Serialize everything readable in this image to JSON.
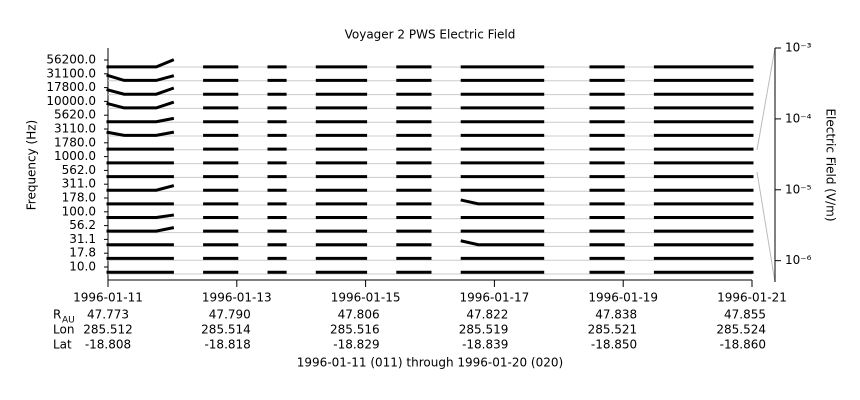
{
  "chart_data": {
    "type": "stacked-line",
    "title": "Voyager 2 PWS Electric Field",
    "y_label": "Frequency (Hz)",
    "y2_label": "Electric Field (V/m)",
    "x_label": "1996-01-11 (011) through 1996-01-20 (020)",
    "categories": [
      "56200.0",
      "31100.0",
      "17800.0",
      "10000.0",
      "5620.0",
      "3110.0",
      "1780.0",
      "1000.0",
      "562.0",
      "311.0",
      "178.0",
      "100.0",
      "56.2",
      "31.1",
      "17.8",
      "10.0"
    ],
    "xlim": [
      "1996-01-11",
      "1996-01-21"
    ],
    "xticks": [
      "1996-01-11",
      "1996-01-13",
      "1996-01-15",
      "1996-01-17",
      "1996-01-19",
      "1996-01-21"
    ],
    "y2lim": [
      5e-07,
      0.001
    ],
    "y2log": true,
    "y2ticks": [
      {
        "value": 0.001,
        "label": "10⁻³"
      },
      {
        "value": 0.0001,
        "label": "10⁻⁴"
      },
      {
        "value": 1e-05,
        "label": "10⁻⁵"
      },
      {
        "value": 1e-06,
        "label": "10⁻⁶"
      }
    ],
    "ephemeris": [
      {
        "label": "R",
        "sub": "AU",
        "values": [
          "47.773",
          "47.790",
          "47.806",
          "47.822",
          "47.838",
          "47.855"
        ]
      },
      {
        "label": "Lon",
        "values": [
          "285.512",
          "285.514",
          "285.516",
          "285.519",
          "285.521",
          "285.524"
        ]
      },
      {
        "label": "Lat",
        "values": [
          "-18.808",
          "-18.818",
          "-18.829",
          "-18.839",
          "-18.850",
          "-18.860"
        ]
      }
    ],
    "x": [
      "1996-01-11T00:00",
      "1996-01-11T06:00",
      "1996-01-11T12:00",
      "1996-01-11T18:00",
      "1996-01-12T00:00",
      "1996-01-12T06:00",
      "1996-01-12T12:00",
      "1996-01-12T18:00",
      "1996-01-13T00:00",
      "1996-01-13T06:00",
      "1996-01-13T12:00",
      "1996-01-13T18:00",
      "1996-01-14T00:00",
      "1996-01-14T06:00",
      "1996-01-14T12:00",
      "1996-01-14T18:00",
      "1996-01-15T00:00",
      "1996-01-15T06:00",
      "1996-01-15T12:00",
      "1996-01-15T18:00",
      "1996-01-16T00:00",
      "1996-01-16T06:00",
      "1996-01-16T12:00",
      "1996-01-16T18:00",
      "1996-01-17T00:00",
      "1996-01-17T06:00",
      "1996-01-17T12:00",
      "1996-01-17T18:00",
      "1996-01-18T00:00",
      "1996-01-18T06:00",
      "1996-01-18T12:00",
      "1996-01-18T18:00",
      "1996-01-19T00:00",
      "1996-01-19T06:00",
      "1996-01-19T12:00",
      "1996-01-19T18:00",
      "1996-01-20T00:00",
      "1996-01-20T06:00",
      "1996-01-20T12:00",
      "1996-01-20T18:00",
      "1996-01-21T00:00"
    ],
    "series": [
      {
        "color": "#000000",
        "values": [
          1e-06,
          1e-06,
          1e-06,
          1e-06,
          8e-05,
          null,
          1e-06,
          1e-06,
          1e-06,
          null,
          1e-06,
          1e-06,
          null,
          1e-06,
          1e-06,
          1e-06,
          1e-06,
          null,
          1e-06,
          1e-06,
          1e-06,
          null,
          1e-06,
          1e-06,
          1e-06,
          1e-06,
          1e-06,
          1e-06,
          null,
          null,
          1e-06,
          1e-06,
          1e-06,
          null,
          1e-06,
          1e-06,
          1e-06,
          1e-06,
          1e-06,
          1e-06,
          1e-06
        ]
      },
      {
        "color": "#000000",
        "values": [
          3e-05,
          1.2e-06,
          1.2e-06,
          1.2e-06,
          2e-05,
          null,
          1.2e-06,
          1.2e-06,
          1.2e-06,
          null,
          1.2e-06,
          1.2e-06,
          null,
          1.2e-06,
          1.2e-06,
          1.2e-06,
          1.2e-06,
          null,
          1.2e-06,
          1.2e-06,
          1.2e-06,
          null,
          1.2e-06,
          1.2e-06,
          1.2e-06,
          1.2e-06,
          1.2e-06,
          1.2e-06,
          null,
          null,
          1.2e-06,
          1.2e-06,
          1.2e-06,
          null,
          1.2e-06,
          1.2e-06,
          1.2e-06,
          1.2e-06,
          1.2e-06,
          1.2e-06,
          1.2e-06
        ]
      },
      {
        "color": "#000000",
        "values": [
          2e-05,
          1.2e-06,
          1.2e-06,
          1.2e-06,
          5e-05,
          null,
          1.2e-06,
          1.2e-06,
          1.2e-06,
          null,
          1.2e-06,
          1.2e-06,
          null,
          1.2e-06,
          1.2e-06,
          1.2e-06,
          1.2e-06,
          null,
          1.2e-06,
          1.2e-06,
          1.2e-06,
          null,
          1.2e-06,
          1.2e-06,
          1.2e-06,
          1.2e-06,
          1.2e-06,
          1.2e-06,
          null,
          null,
          1.2e-06,
          1.2e-06,
          1.2e-06,
          null,
          1.2e-06,
          1.2e-06,
          1.2e-06,
          1.2e-06,
          1.2e-06,
          1.2e-06,
          1.2e-06
        ]
      },
      {
        "color": "#000000",
        "values": [
          2e-05,
          1.3e-06,
          1.3e-06,
          1.3e-06,
          4e-05,
          null,
          1.3e-06,
          1.3e-06,
          1.3e-06,
          null,
          1.3e-06,
          1.3e-06,
          null,
          1.3e-06,
          1.3e-06,
          1.3e-06,
          1.3e-06,
          null,
          1.3e-06,
          1.3e-06,
          1.3e-06,
          null,
          1.3e-06,
          1.3e-06,
          1.3e-06,
          1.3e-06,
          1.3e-06,
          1.3e-06,
          null,
          null,
          1.3e-06,
          1.3e-06,
          1.3e-06,
          null,
          1.3e-06,
          1.3e-06,
          1.3e-06,
          1.3e-06,
          1.3e-06,
          1.3e-06,
          1.3e-06
        ]
      },
      {
        "color": "#000000",
        "values": [
          1.3e-06,
          1.3e-06,
          1.3e-06,
          1.3e-06,
          1e-05,
          null,
          1.3e-06,
          1.3e-06,
          1.3e-06,
          null,
          1.3e-06,
          1.3e-06,
          null,
          1.3e-06,
          1.3e-06,
          1.3e-06,
          1.3e-06,
          null,
          1.3e-06,
          1.3e-06,
          1.3e-06,
          null,
          1.3e-06,
          1.3e-06,
          1.3e-06,
          1.3e-06,
          1.3e-06,
          1.3e-06,
          null,
          null,
          1.3e-06,
          1.3e-06,
          1.3e-06,
          null,
          1.3e-06,
          1.3e-06,
          1.3e-06,
          1.3e-06,
          1.3e-06,
          1.3e-06,
          1.3e-06
        ]
      },
      {
        "color": "#000000",
        "values": [
          1e-05,
          1.4e-06,
          1.4e-06,
          1.4e-06,
          1e-05,
          null,
          1.4e-06,
          1.4e-06,
          1.4e-06,
          null,
          1.4e-06,
          1.4e-06,
          null,
          1.4e-06,
          1.4e-06,
          1.4e-06,
          1.4e-06,
          null,
          1.4e-06,
          1.4e-06,
          1.4e-06,
          null,
          1.4e-06,
          1.4e-06,
          1.4e-06,
          1.4e-06,
          1.4e-06,
          1.4e-06,
          null,
          null,
          1.4e-06,
          1.4e-06,
          1.4e-06,
          null,
          1.4e-06,
          1.4e-06,
          1.4e-06,
          1.4e-06,
          1.4e-06,
          1.4e-06,
          1.4e-06
        ]
      },
      {
        "color": "#000000",
        "values": [
          1.5e-06,
          1.5e-06,
          1.5e-06,
          1.5e-06,
          1.5e-06,
          null,
          1.5e-06,
          1.5e-06,
          1.5e-06,
          null,
          1.5e-06,
          1.5e-06,
          null,
          1.5e-06,
          1.5e-06,
          1.5e-06,
          1.5e-06,
          null,
          1.5e-06,
          1.5e-06,
          1.5e-06,
          null,
          1.5e-06,
          1.5e-06,
          1.5e-06,
          1.5e-06,
          1.5e-06,
          1.5e-06,
          null,
          null,
          1.5e-06,
          1.5e-06,
          1.5e-06,
          null,
          1.5e-06,
          1.5e-06,
          1.5e-06,
          1.5e-06,
          1.5e-06,
          1.5e-06,
          1.5e-06
        ]
      },
      {
        "color": "#000000",
        "values": [
          1.5e-06,
          1.5e-06,
          1.5e-06,
          1.5e-06,
          1.5e-06,
          null,
          1.5e-06,
          1.5e-06,
          1.5e-06,
          null,
          1.5e-06,
          1.5e-06,
          null,
          1.5e-06,
          1.5e-06,
          1.5e-06,
          1.5e-06,
          null,
          1.5e-06,
          1.5e-06,
          1.5e-06,
          null,
          1.5e-06,
          1.5e-06,
          1.5e-06,
          1.5e-06,
          1.5e-06,
          1.5e-06,
          null,
          null,
          1.5e-06,
          1.5e-06,
          1.5e-06,
          null,
          1.5e-06,
          1.5e-06,
          1.5e-06,
          1.5e-06,
          1.5e-06,
          1.5e-06,
          1.5e-06
        ]
      },
      {
        "color": "#000000",
        "values": [
          1.6e-06,
          1.6e-06,
          1.6e-06,
          1.6e-06,
          1.6e-06,
          null,
          1.6e-06,
          1.6e-06,
          1.6e-06,
          null,
          1.6e-06,
          1.6e-06,
          null,
          1.6e-06,
          1.6e-06,
          1.6e-06,
          1.6e-06,
          null,
          1.6e-06,
          1.6e-06,
          1.6e-06,
          null,
          1.6e-06,
          1.6e-06,
          1.6e-06,
          1.6e-06,
          1.6e-06,
          1.6e-06,
          null,
          null,
          1.6e-06,
          1.6e-06,
          1.6e-06,
          null,
          1.6e-06,
          1.6e-06,
          1.6e-06,
          1.6e-06,
          1.6e-06,
          1.6e-06,
          1.6e-06
        ]
      },
      {
        "color": "#000000",
        "values": [
          1.8e-06,
          1.8e-06,
          1.8e-06,
          1.8e-06,
          3e-05,
          null,
          1.8e-06,
          1.8e-06,
          1.8e-06,
          null,
          1.8e-06,
          1.8e-06,
          null,
          1.8e-06,
          1.8e-06,
          1.8e-06,
          1.8e-06,
          null,
          1.8e-06,
          1.8e-06,
          1.8e-06,
          null,
          1.8e-06,
          1.8e-06,
          1.8e-06,
          1.8e-06,
          1.8e-06,
          1.8e-06,
          null,
          null,
          1.8e-06,
          1.8e-06,
          1.8e-06,
          null,
          1.8e-06,
          1.8e-06,
          1.8e-06,
          1.8e-06,
          1.8e-06,
          1.8e-06,
          1.8e-06
        ]
      },
      {
        "color": "#000000",
        "values": [
          2e-06,
          2e-06,
          2e-06,
          2e-06,
          2e-06,
          null,
          2e-06,
          2e-06,
          2e-06,
          null,
          2e-06,
          2e-06,
          null,
          2e-06,
          2e-06,
          2e-06,
          2e-06,
          null,
          2e-06,
          2e-06,
          2e-06,
          null,
          2e-05,
          2e-06,
          2e-06,
          2e-06,
          2e-06,
          2e-06,
          null,
          null,
          2e-06,
          2e-06,
          2e-06,
          null,
          2e-06,
          2e-06,
          2e-06,
          2e-06,
          2e-06,
          2e-06,
          2e-06
        ]
      },
      {
        "color": "#000000",
        "values": [
          2.2e-06,
          2.2e-06,
          2.2e-06,
          2.2e-06,
          1e-05,
          null,
          2.2e-06,
          2.2e-06,
          2.2e-06,
          null,
          2.2e-06,
          2.2e-06,
          null,
          2.2e-06,
          2.2e-06,
          2.2e-06,
          2.2e-06,
          null,
          2.2e-06,
          2.2e-06,
          2.2e-06,
          null,
          2.2e-06,
          2.2e-06,
          2.2e-06,
          2.2e-06,
          2.2e-06,
          2.2e-06,
          null,
          null,
          2.2e-06,
          2.2e-06,
          2.2e-06,
          null,
          2.2e-06,
          2.2e-06,
          2.2e-06,
          2.2e-06,
          2.2e-06,
          2.2e-06,
          2.2e-06
        ]
      },
      {
        "color": "#000000",
        "values": [
          2.5e-06,
          2.5e-06,
          2.5e-06,
          2.5e-06,
          2e-05,
          null,
          2.5e-06,
          2.5e-06,
          2.5e-06,
          null,
          2.5e-06,
          2.5e-06,
          null,
          2.5e-06,
          2.5e-06,
          2.5e-06,
          2.5e-06,
          null,
          2.5e-06,
          2.5e-06,
          2.5e-06,
          null,
          2.5e-06,
          2.5e-06,
          2.5e-06,
          2.5e-06,
          2.5e-06,
          2.5e-06,
          null,
          null,
          2.5e-06,
          2.5e-06,
          2.5e-06,
          null,
          2.5e-06,
          2.5e-06,
          2.5e-06,
          2.5e-06,
          2.5e-06,
          2.5e-06,
          2.5e-06
        ]
      },
      {
        "color": "#000000",
        "values": [
          2.8e-06,
          2.8e-06,
          2.8e-06,
          2.8e-06,
          2.8e-06,
          null,
          2.8e-06,
          2.8e-06,
          2.8e-06,
          null,
          2.8e-06,
          2.8e-06,
          null,
          2.8e-06,
          2.8e-06,
          2.8e-06,
          2.8e-06,
          null,
          2.8e-06,
          2.8e-06,
          2.8e-06,
          null,
          3e-05,
          2.8e-06,
          2.8e-06,
          2.8e-06,
          2.8e-06,
          2.8e-06,
          null,
          null,
          2.8e-06,
          2.8e-06,
          2.8e-06,
          null,
          2.8e-06,
          2.8e-06,
          2.8e-06,
          2.8e-06,
          2.8e-06,
          2.8e-06,
          2.8e-06
        ]
      },
      {
        "color": "#000000",
        "values": [
          3e-06,
          3e-06,
          3e-06,
          3e-06,
          3e-06,
          null,
          3e-06,
          3e-06,
          3e-06,
          null,
          3e-06,
          3e-06,
          null,
          3e-06,
          3e-06,
          3e-06,
          3e-06,
          null,
          3e-06,
          3e-06,
          3e-06,
          null,
          3e-06,
          3e-06,
          3e-06,
          3e-06,
          3e-06,
          3e-06,
          null,
          null,
          3e-06,
          3e-06,
          3e-06,
          null,
          3e-06,
          3e-06,
          3e-06,
          3e-06,
          3e-06,
          3e-06,
          3e-06
        ]
      },
      {
        "color": "#000000",
        "values": [
          3e-06,
          3e-06,
          3e-06,
          3e-06,
          3e-06,
          null,
          3e-06,
          3e-06,
          3e-06,
          null,
          3e-06,
          3e-06,
          null,
          3e-06,
          3e-06,
          3e-06,
          3e-06,
          null,
          3e-06,
          3e-06,
          3e-06,
          null,
          3e-06,
          3e-06,
          3e-06,
          3e-06,
          3e-06,
          3e-06,
          null,
          null,
          3e-06,
          3e-06,
          3e-06,
          null,
          3e-06,
          3e-06,
          3e-06,
          3e-06,
          3e-06,
          3e-06,
          3e-06
        ]
      }
    ]
  }
}
